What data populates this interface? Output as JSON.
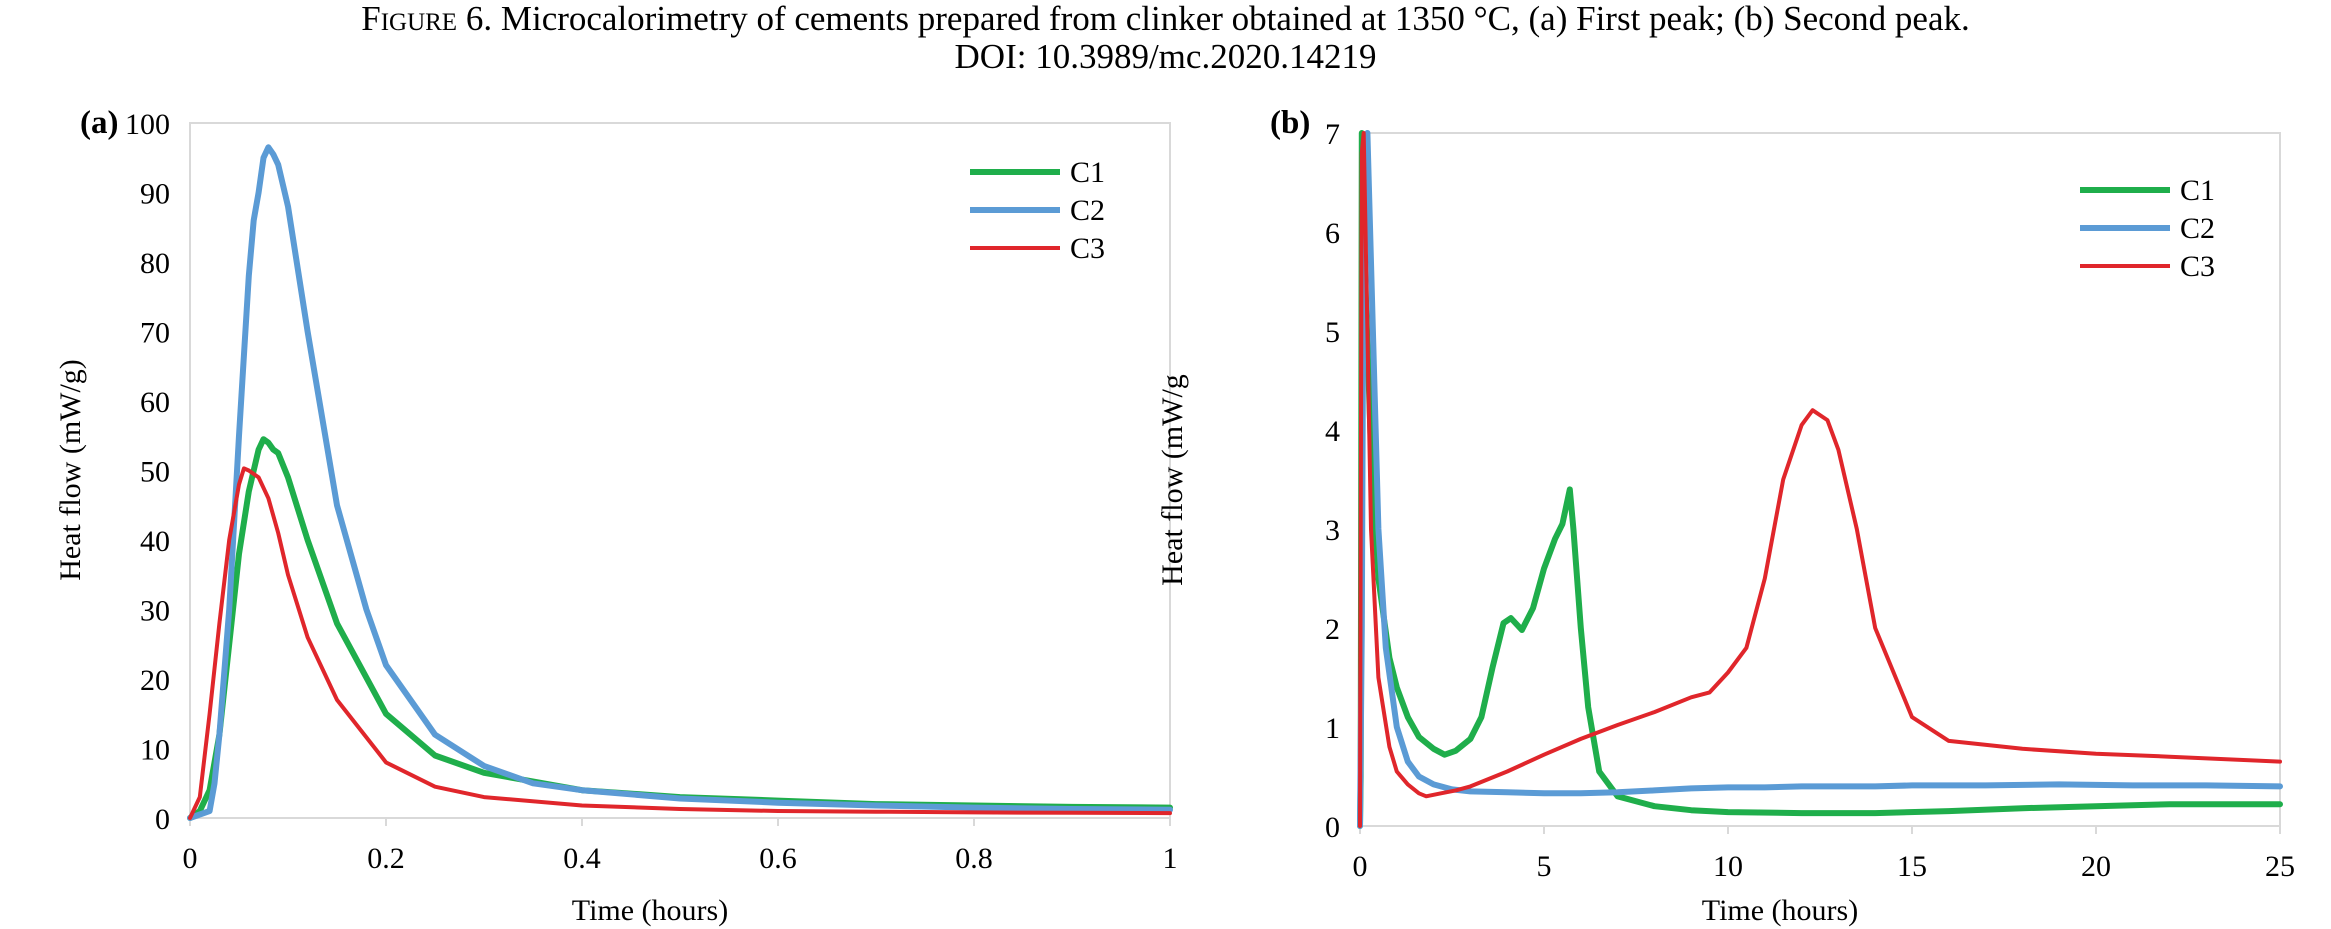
{
  "caption": {
    "figure_label": "Figure 6.",
    "line1": "Microcalorimetry of cements prepared from clinker obtained at 1350 °C, (a) First peak; (b) Second peak.",
    "line2": "DOI: 10.3989/mc.2020.14219"
  },
  "colors": {
    "C1": "#1fae4b",
    "C2": "#5b9bd5",
    "C3": "#e0262b",
    "axis": "#d9d9d9"
  },
  "chart_data": [
    {
      "panel_label": "(a)",
      "type": "line",
      "title": "",
      "xlabel": "Time (hours)",
      "ylabel": "Heat flow (mW/g)",
      "xlim": [
        0,
        1
      ],
      "ylim": [
        0,
        100
      ],
      "x_ticks": [
        "0",
        "0.2",
        "0.4",
        "0.6",
        "0.8",
        "1"
      ],
      "y_ticks": [
        "0",
        "10",
        "20",
        "30",
        "40",
        "50",
        "60",
        "70",
        "80",
        "90",
        "100"
      ],
      "grid": false,
      "legend_position": "top-right",
      "series": [
        {
          "name": "C1",
          "color": "#1fae4b",
          "x": [
            0,
            0.01,
            0.02,
            0.03,
            0.04,
            0.05,
            0.06,
            0.07,
            0.075,
            0.08,
            0.085,
            0.09,
            0.1,
            0.12,
            0.15,
            0.2,
            0.25,
            0.3,
            0.4,
            0.5,
            0.6,
            0.7,
            0.8,
            0.9,
            1.0
          ],
          "y": [
            0,
            1,
            4,
            12,
            25,
            38,
            47,
            53,
            54.5,
            54,
            53,
            52.5,
            49,
            40,
            28,
            15,
            9,
            6.5,
            4,
            3,
            2.5,
            2,
            1.8,
            1.6,
            1.5
          ]
        },
        {
          "name": "C2",
          "color": "#5b9bd5",
          "x": [
            0,
            0.02,
            0.025,
            0.03,
            0.04,
            0.05,
            0.06,
            0.065,
            0.07,
            0.075,
            0.08,
            0.085,
            0.09,
            0.1,
            0.12,
            0.15,
            0.18,
            0.2,
            0.25,
            0.3,
            0.35,
            0.4,
            0.5,
            0.6,
            0.7,
            0.8,
            0.9,
            1.0
          ],
          "y": [
            0,
            1,
            5,
            12,
            30,
            55,
            78,
            86,
            90,
            95,
            96.5,
            95.5,
            94,
            88,
            70,
            45,
            30,
            22,
            12,
            7.5,
            5,
            4,
            2.8,
            2.2,
            1.8,
            1.5,
            1.3,
            1.2
          ]
        },
        {
          "name": "C3",
          "color": "#e0262b",
          "x": [
            0,
            0.01,
            0.02,
            0.03,
            0.04,
            0.05,
            0.055,
            0.06,
            0.07,
            0.08,
            0.09,
            0.1,
            0.12,
            0.15,
            0.2,
            0.25,
            0.3,
            0.4,
            0.5,
            0.6,
            0.7,
            0.8,
            0.9,
            1.0
          ],
          "y": [
            0,
            3,
            15,
            28,
            40,
            48,
            50.3,
            50,
            49,
            46,
            41,
            35,
            26,
            17,
            8,
            4.5,
            3,
            1.8,
            1.3,
            1.0,
            0.9,
            0.8,
            0.75,
            0.7
          ]
        }
      ]
    },
    {
      "panel_label": "(b)",
      "type": "line",
      "title": "",
      "xlabel": "Time (hours)",
      "ylabel": "Heat flow (mW/g",
      "xlim": [
        0,
        25
      ],
      "ylim": [
        0,
        7
      ],
      "x_ticks": [
        "0",
        "5",
        "10",
        "15",
        "20",
        "25"
      ],
      "y_ticks": [
        "0",
        "1",
        "2",
        "3",
        "4",
        "5",
        "6",
        "7"
      ],
      "grid": false,
      "legend_position": "top-right",
      "series": [
        {
          "name": "C1",
          "color": "#1fae4b",
          "x": [
            0,
            0.02,
            0.05,
            0.1,
            0.3,
            0.5,
            0.8,
            1.0,
            1.3,
            1.6,
            2.0,
            2.3,
            2.6,
            3.0,
            3.3,
            3.6,
            3.9,
            4.1,
            4.4,
            4.7,
            5.0,
            5.3,
            5.5,
            5.7,
            5.8,
            6.0,
            6.2,
            6.5,
            7.0,
            8.0,
            9.0,
            10.0,
            12.0,
            14.0,
            16.0,
            18.0,
            20.0,
            22.0,
            25.0
          ],
          "y": [
            0,
            0.5,
            7.0,
            6.0,
            3.8,
            2.5,
            1.7,
            1.4,
            1.1,
            0.9,
            0.78,
            0.72,
            0.76,
            0.88,
            1.1,
            1.6,
            2.05,
            2.1,
            1.98,
            2.2,
            2.6,
            2.9,
            3.05,
            3.4,
            3.0,
            2.0,
            1.2,
            0.55,
            0.3,
            0.2,
            0.16,
            0.14,
            0.13,
            0.13,
            0.15,
            0.18,
            0.2,
            0.22,
            0.22
          ]
        },
        {
          "name": "C2",
          "color": "#5b9bd5",
          "x": [
            0,
            0.05,
            0.1,
            0.2,
            0.35,
            0.5,
            0.7,
            1.0,
            1.3,
            1.6,
            2.0,
            2.5,
            3.0,
            4.0,
            5.0,
            6.0,
            7.0,
            8.0,
            9.0,
            10.0,
            11.0,
            12.0,
            13.0,
            14.0,
            15.0,
            17.0,
            19.0,
            21.0,
            23.0,
            25.0
          ],
          "y": [
            0,
            2.0,
            6.5,
            7.0,
            5.0,
            3.0,
            1.8,
            1.0,
            0.65,
            0.5,
            0.42,
            0.37,
            0.35,
            0.34,
            0.33,
            0.33,
            0.34,
            0.36,
            0.38,
            0.39,
            0.39,
            0.4,
            0.4,
            0.4,
            0.41,
            0.41,
            0.42,
            0.41,
            0.41,
            0.4
          ]
        },
        {
          "name": "C3",
          "color": "#e0262b",
          "x": [
            0,
            0.02,
            0.05,
            0.1,
            0.2,
            0.3,
            0.5,
            0.8,
            1.0,
            1.3,
            1.6,
            1.8,
            2.2,
            2.6,
            3.0,
            4.0,
            5.0,
            6.0,
            7.0,
            8.0,
            9.0,
            9.5,
            10.0,
            10.5,
            11.0,
            11.5,
            12.0,
            12.3,
            12.7,
            13.0,
            13.5,
            14.0,
            15.0,
            16.0,
            18.0,
            20.0,
            22.0,
            25.0
          ],
          "y": [
            0,
            3.0,
            6.8,
            7.0,
            5.0,
            3.0,
            1.5,
            0.8,
            0.55,
            0.42,
            0.33,
            0.3,
            0.33,
            0.36,
            0.4,
            0.55,
            0.72,
            0.88,
            1.02,
            1.15,
            1.3,
            1.35,
            1.55,
            1.8,
            2.5,
            3.5,
            4.05,
            4.2,
            4.1,
            3.8,
            3.0,
            2.0,
            1.1,
            0.86,
            0.78,
            0.73,
            0.7,
            0.65
          ]
        }
      ]
    }
  ]
}
